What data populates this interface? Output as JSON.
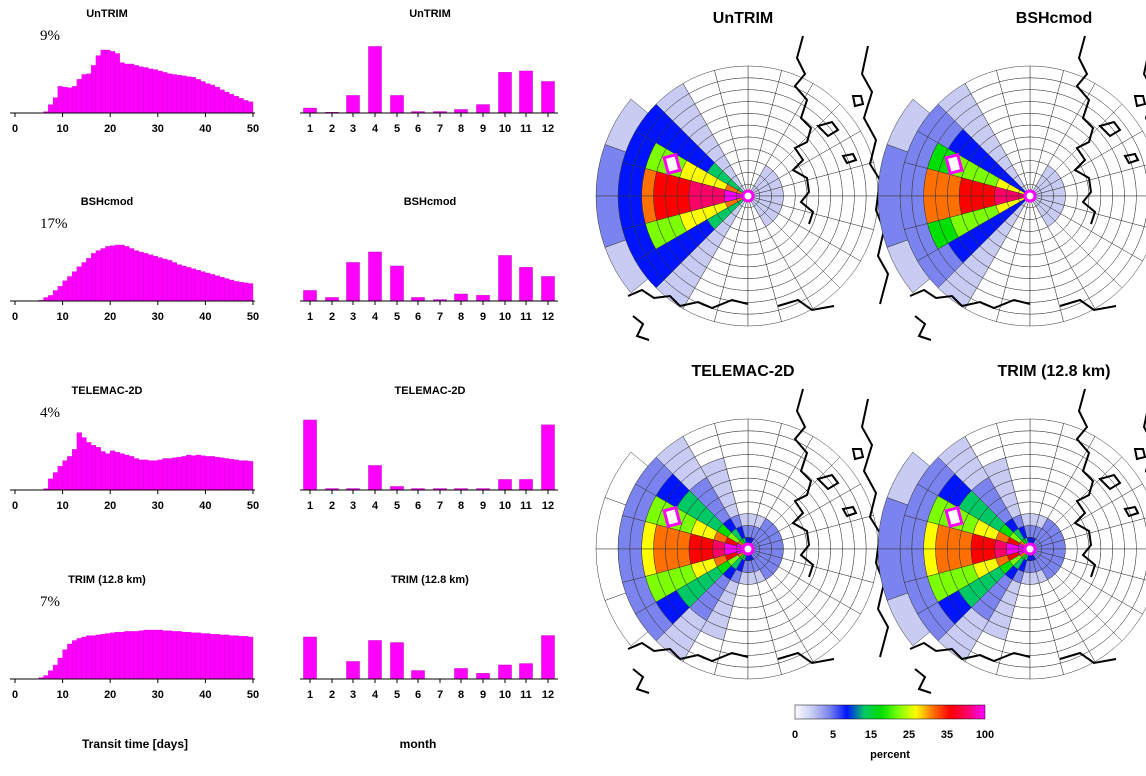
{
  "colors": {
    "bars": "#ff00ff",
    "bar_edge": "#c000c0",
    "axis": "#000000",
    "grid": "#000000",
    "coast": "#000000",
    "source": "#ff00ff",
    "colormap": [
      "#ffffff",
      "#c8ccf2",
      "#7b84ee",
      "#0014ff",
      "#00c864",
      "#00e000",
      "#7cff00",
      "#ffff00",
      "#ff7000",
      "#ff0000",
      "#ff0066",
      "#ff00ff"
    ]
  },
  "transit_histograms": {
    "xlim": [
      0,
      50
    ],
    "xticks": [
      "0",
      "10",
      "20",
      "30",
      "40",
      "50"
    ],
    "xlabel": "Transit time [days]",
    "panels": [
      {
        "title": "UnTRIM",
        "percent": "9%",
        "values": [
          0,
          0,
          0,
          0,
          0,
          0,
          0.02,
          0.12,
          0.22,
          0.38,
          0.37,
          0.36,
          0.38,
          0.48,
          0.55,
          0.56,
          0.68,
          0.82,
          0.9,
          0.9,
          0.88,
          0.85,
          0.72,
          0.7,
          0.7,
          0.68,
          0.66,
          0.65,
          0.63,
          0.62,
          0.6,
          0.58,
          0.56,
          0.55,
          0.54,
          0.53,
          0.52,
          0.51,
          0.48,
          0.45,
          0.42,
          0.4,
          0.37,
          0.33,
          0.3,
          0.27,
          0.24,
          0.21,
          0.18,
          0.16
        ]
      },
      {
        "title": "BSHcmod",
        "percent": "17%",
        "values": [
          0,
          0,
          0,
          0,
          0,
          0.01,
          0.05,
          0.08,
          0.15,
          0.21,
          0.29,
          0.35,
          0.42,
          0.49,
          0.55,
          0.61,
          0.68,
          0.72,
          0.75,
          0.78,
          0.79,
          0.8,
          0.8,
          0.78,
          0.75,
          0.72,
          0.7,
          0.68,
          0.66,
          0.64,
          0.62,
          0.6,
          0.58,
          0.55,
          0.52,
          0.5,
          0.48,
          0.46,
          0.44,
          0.42,
          0.4,
          0.38,
          0.36,
          0.34,
          0.32,
          0.3,
          0.28,
          0.27,
          0.26,
          0.25
        ]
      },
      {
        "title": "TELEMAC-2D",
        "percent": "4%",
        "values": [
          0,
          0,
          0,
          0,
          0,
          0,
          0.02,
          0.16,
          0.25,
          0.34,
          0.42,
          0.48,
          0.58,
          0.82,
          0.75,
          0.68,
          0.64,
          0.61,
          0.55,
          0.52,
          0.56,
          0.54,
          0.52,
          0.5,
          0.48,
          0.45,
          0.43,
          0.43,
          0.42,
          0.42,
          0.43,
          0.45,
          0.45,
          0.46,
          0.47,
          0.48,
          0.5,
          0.49,
          0.5,
          0.49,
          0.48,
          0.48,
          0.47,
          0.46,
          0.45,
          0.44,
          0.43,
          0.42,
          0.42,
          0.41
        ]
      },
      {
        "title": "TRIM (12.8 km)",
        "percent": "7%",
        "values": [
          0,
          0,
          0,
          0,
          0,
          0.02,
          0.05,
          0.12,
          0.2,
          0.3,
          0.42,
          0.5,
          0.55,
          0.58,
          0.6,
          0.62,
          0.62,
          0.63,
          0.64,
          0.65,
          0.66,
          0.67,
          0.67,
          0.68,
          0.68,
          0.68,
          0.69,
          0.7,
          0.7,
          0.7,
          0.7,
          0.69,
          0.69,
          0.68,
          0.68,
          0.67,
          0.67,
          0.66,
          0.66,
          0.65,
          0.65,
          0.64,
          0.64,
          0.63,
          0.63,
          0.62,
          0.62,
          0.61,
          0.61,
          0.6
        ]
      }
    ]
  },
  "month_histograms": {
    "categories": [
      "1",
      "2",
      "3",
      "4",
      "5",
      "6",
      "7",
      "8",
      "9",
      "10",
      "11",
      "12"
    ],
    "xlabel": "month",
    "panels": [
      {
        "title": "UnTRIM",
        "values": [
          0.07,
          0.01,
          0.25,
          0.95,
          0.25,
          0.02,
          0.02,
          0.05,
          0.12,
          0.58,
          0.6,
          0.45
        ]
      },
      {
        "title": "BSHcmod",
        "values": [
          0.15,
          0.05,
          0.55,
          0.7,
          0.5,
          0.05,
          0.02,
          0.1,
          0.08,
          0.65,
          0.48,
          0.35
        ]
      },
      {
        "title": "TELEMAC-2D",
        "values": [
          1.0,
          0.02,
          0.02,
          0.35,
          0.05,
          0.02,
          0.02,
          0.02,
          0.02,
          0.15,
          0.15,
          0.93
        ]
      },
      {
        "title": "TRIM (12.8 km)",
        "values": [
          0.6,
          0.0,
          0.25,
          0.55,
          0.52,
          0.12,
          0.0,
          0.15,
          0.08,
          0.2,
          0.22,
          0.62
        ]
      }
    ]
  },
  "maps": {
    "panels": [
      "UnTRIM",
      "BSHcmod",
      "TELEMAC-2D",
      "TRIM (12.8 km)"
    ],
    "colorbar": {
      "tick_labels": [
        "0",
        "5",
        "15",
        "25",
        "35",
        "100"
      ],
      "label": "percent"
    }
  }
}
